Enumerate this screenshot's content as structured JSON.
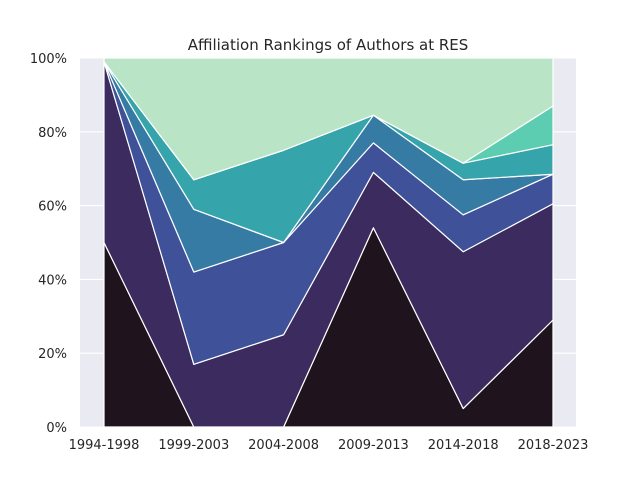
{
  "chart_data": {
    "type": "area",
    "stacked": true,
    "percent": true,
    "title": "Affiliation Rankings of Authors at RES",
    "xlabel": "",
    "ylabel": "",
    "categories": [
      "1994-1998",
      "1999-2003",
      "2004-2008",
      "2009-2013",
      "2014-2018",
      "2018-2023"
    ],
    "ylim": [
      0,
      100
    ],
    "yticks": [
      0,
      20,
      40,
      60,
      80,
      100
    ],
    "ytick_labels": [
      "0%",
      "20%",
      "40%",
      "60%",
      "80%",
      "100%"
    ],
    "grid": true,
    "legend": "none",
    "series": [
      {
        "color": "#1f141e",
        "values": [
          50,
          0,
          0,
          54,
          5,
          29
        ]
      },
      {
        "color": "#3b2b5e",
        "values": [
          49,
          17,
          25,
          15,
          42.5,
          31.5
        ]
      },
      {
        "color": "#3e5199",
        "values": [
          0,
          25,
          25,
          8,
          10,
          8
        ]
      },
      {
        "color": "#357ba3",
        "values": [
          0,
          17,
          0,
          7.5,
          9.5,
          0
        ]
      },
      {
        "color": "#35a4ab",
        "values": [
          0,
          8,
          25,
          0,
          4.5,
          8
        ]
      },
      {
        "color": "#5ccdb0",
        "values": [
          0,
          0,
          0,
          0,
          0,
          10.5
        ]
      },
      {
        "color": "#b9e5c6",
        "values": [
          1,
          33,
          25,
          15.5,
          28.5,
          13
        ]
      }
    ],
    "colors": {
      "background": "#eaeaf2",
      "grid": "#ffffff"
    }
  }
}
